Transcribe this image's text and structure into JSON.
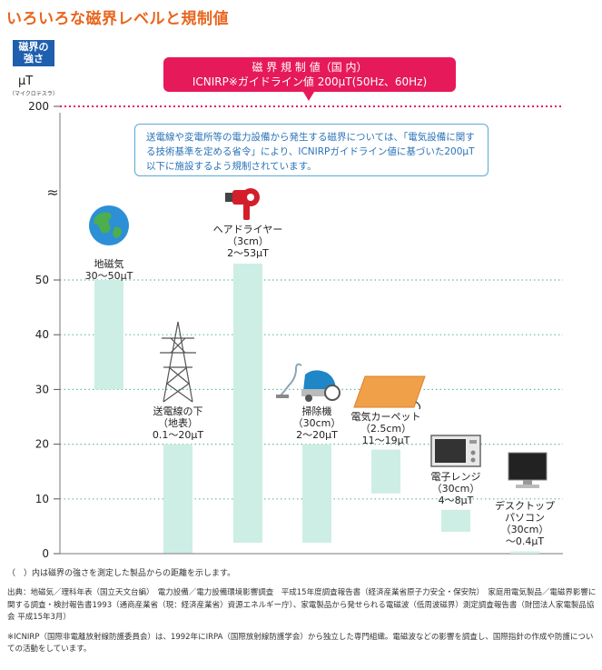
{
  "page_title": "いろいろな磁界レベルと規制値",
  "axis": {
    "badge_line1": "磁界の",
    "badge_line2": "強さ",
    "unit": "μT",
    "unit_note": "（マイクロテスラ）"
  },
  "regulation": {
    "line1": "磁 界 規 制 値（国 内）",
    "line2": "ICNIRP※ガイドライン値 200μT(50Hz、60Hz)",
    "color": "#e6195b"
  },
  "note": "送電線や変電所等の電力設備から発生する磁界については、「電気設備に関する技術基準を定める省令」により、ICNIRPガイドライン値に基づいた200μT以下に施設するよう規制されています。",
  "chart_data": {
    "type": "bar",
    "ylabel": "μT",
    "y_ticks": [
      0,
      10,
      20,
      30,
      40,
      50,
      200
    ],
    "y_break": "≈",
    "regulation_value": 200,
    "bar_color": "#cdeee4",
    "categories": [
      {
        "name": "地磁気",
        "distance": "",
        "range_text": "30～50μT",
        "low": 30,
        "high": 50,
        "icon": "earth-icon"
      },
      {
        "name": "送電線の下",
        "distance": "（地表）",
        "range_text": "0.1～20μT",
        "low": 0.1,
        "high": 20,
        "icon": "power-tower-icon"
      },
      {
        "name": "ヘアドライヤー",
        "distance": "（3cm）",
        "range_text": "2～53μT",
        "low": 2,
        "high": 53,
        "icon": "hair-dryer-icon"
      },
      {
        "name": "掃除機",
        "distance": "（30cm）",
        "range_text": "2～20μT",
        "low": 2,
        "high": 20,
        "icon": "vacuum-cleaner-icon"
      },
      {
        "name": "電気カーペット",
        "distance": "（2.5cm）",
        "range_text": "11～19μT",
        "low": 11,
        "high": 19,
        "icon": "electric-carpet-icon"
      },
      {
        "name": "電子レンジ",
        "distance": "（30cm）",
        "range_text": "4～8μT",
        "low": 4,
        "high": 8,
        "icon": "microwave-icon"
      },
      {
        "name": "デスクトップ\nパソコン",
        "distance": "（30cm）",
        "range_text": "～0.4μT",
        "low": 0,
        "high": 0.4,
        "icon": "desktop-pc-icon"
      }
    ]
  },
  "footer": {
    "distance_note": "（　）内は磁界の強さを測定した製品からの距離を示します。",
    "sources": "出典：地磁気／理科年表（国立天文台編）　電力設備／電力設備環境影響調査　平成15年度調査報告書（経済産業省原子力安全・保安院）　家庭用電気製品／電磁界影響に関する調査・検討報告書1993（通商産業省（現：経済産業省）資源エネルギー庁）、家電製品から発せられる電磁波（低周波磁界）測定調査報告書（財団法人家電製品協会 平成15年3月）",
    "icnirp_note": "※ICNIRP（国際非電離放射線防護委員会）は、1992年にIRPA（国際放射線防護学会）から独立した専門組織。電磁波などの影響を調査し、国際指針の作成や防護についての活動をしています。"
  }
}
